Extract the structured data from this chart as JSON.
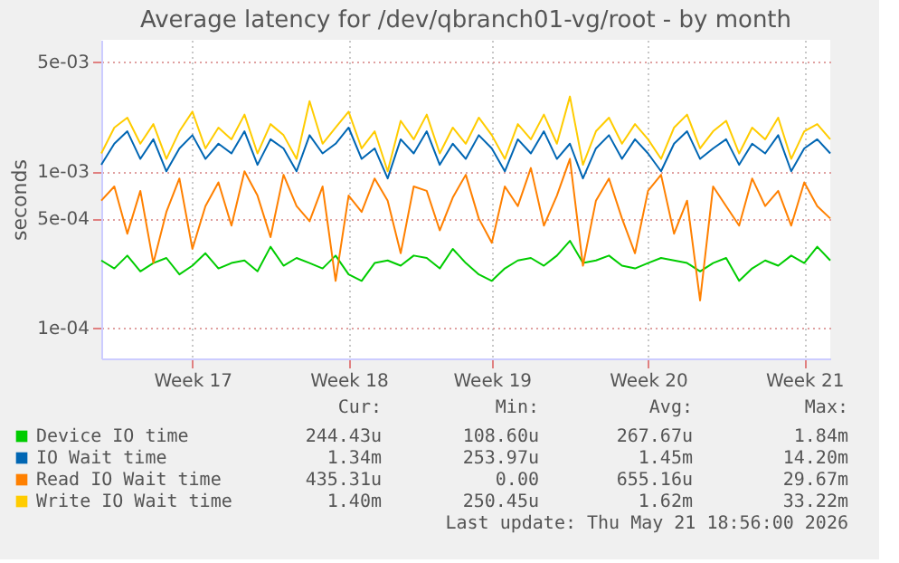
{
  "chart_data": {
    "type": "line",
    "title": "Average latency for /dev/qbranch01-vg/root - by month",
    "ylabel": "seconds",
    "log": "y",
    "grid": true,
    "legend": "bottom",
    "marker": "none",
    "line_style": "solid",
    "categories": [
      null,
      null,
      null,
      null,
      null,
      null,
      null,
      "Week 17",
      null,
      null,
      null,
      null,
      null,
      null,
      null,
      null,
      null,
      null,
      null,
      "Week 18",
      null,
      null,
      null,
      null,
      null,
      null,
      null,
      null,
      null,
      null,
      "Week 19",
      null,
      null,
      null,
      null,
      null,
      null,
      null,
      null,
      null,
      null,
      null,
      "Week 20",
      null,
      null,
      null,
      null,
      null,
      null,
      null,
      null,
      null,
      null,
      null,
      "Week 21",
      null,
      null
    ],
    "ylim": [
      6.4e-05,
      0.0069
    ],
    "yticks": [
      {
        "value": 0.0001,
        "label": "1e-04"
      },
      {
        "value": 0.0005,
        "label": "5e-04"
      },
      {
        "value": 0.001,
        "label": "1e-03"
      },
      {
        "value": 0.005,
        "label": "5e-03"
      }
    ],
    "series": [
      {
        "name": "Device IO time",
        "color": "#00cc00",
        "values": [
          0.00027,
          0.00024,
          0.00029,
          0.00023,
          0.00026,
          0.00028,
          0.00022,
          0.00025,
          0.0003,
          0.00024,
          0.00026,
          0.00027,
          0.00023,
          0.00033,
          0.00025,
          0.00028,
          0.00026,
          0.00024,
          0.00029,
          0.00022,
          0.0002,
          0.00026,
          0.00027,
          0.00025,
          0.00029,
          0.00028,
          0.00024,
          0.00032,
          0.00026,
          0.00022,
          0.0002,
          0.00024,
          0.00027,
          0.00028,
          0.00025,
          0.00029,
          0.00036,
          0.00026,
          0.00027,
          0.00029,
          0.00025,
          0.00024,
          0.00026,
          0.00028,
          0.00027,
          0.00026,
          0.00023,
          0.00026,
          0.00028,
          0.0002,
          0.00024,
          0.00027,
          0.00025,
          0.00029,
          0.00026,
          0.00033,
          0.00027
        ]
      },
      {
        "name": "IO Wait time",
        "color": "#0066b3",
        "values": [
          0.0011,
          0.0015,
          0.0018,
          0.0012,
          0.0016,
          0.001,
          0.0014,
          0.0017,
          0.0012,
          0.0015,
          0.0013,
          0.0018,
          0.0011,
          0.0016,
          0.0014,
          0.001,
          0.0017,
          0.0013,
          0.0015,
          0.0019,
          0.0012,
          0.0014,
          0.0009,
          0.0016,
          0.0013,
          0.0018,
          0.0011,
          0.0015,
          0.0012,
          0.0017,
          0.0014,
          0.001,
          0.0016,
          0.0013,
          0.0018,
          0.0012,
          0.0015,
          0.0009,
          0.0014,
          0.0017,
          0.0012,
          0.0016,
          0.0013,
          0.001,
          0.0015,
          0.0018,
          0.0012,
          0.0014,
          0.0016,
          0.0011,
          0.0015,
          0.0013,
          0.0017,
          0.001,
          0.0014,
          0.0016,
          0.0013
        ]
      },
      {
        "name": "Read IO Wait time",
        "color": "#ff8000",
        "values": [
          0.00065,
          0.0008,
          0.0004,
          0.00075,
          0.00026,
          0.00055,
          0.0009,
          0.00032,
          0.0006,
          0.00085,
          0.00045,
          0.001,
          0.0007,
          0.00038,
          0.00095,
          0.0006,
          0.00048,
          0.0008,
          0.0002,
          0.0007,
          0.00055,
          0.0009,
          0.00065,
          0.0003,
          0.0008,
          0.00075,
          0.00042,
          0.00068,
          0.00095,
          0.0005,
          0.00035,
          0.0008,
          0.0006,
          0.00105,
          0.00045,
          0.0007,
          0.0012,
          0.00025,
          0.00065,
          0.0009,
          0.0005,
          0.0003,
          0.00075,
          0.00095,
          0.0004,
          0.00065,
          0.00015,
          0.0008,
          0.0006,
          0.00045,
          0.0009,
          0.0006,
          0.00075,
          0.00045,
          0.00085,
          0.0006,
          0.0005
        ]
      },
      {
        "name": "Write IO Wait time",
        "color": "#ffcc00",
        "values": [
          0.0013,
          0.0019,
          0.0022,
          0.0015,
          0.002,
          0.0012,
          0.0018,
          0.0024,
          0.0014,
          0.0019,
          0.0016,
          0.0023,
          0.0013,
          0.002,
          0.0017,
          0.0012,
          0.0028,
          0.0015,
          0.0019,
          0.0024,
          0.0014,
          0.0018,
          0.001,
          0.0021,
          0.0016,
          0.0023,
          0.0013,
          0.0019,
          0.0015,
          0.0022,
          0.0017,
          0.0012,
          0.002,
          0.0016,
          0.0023,
          0.0015,
          0.003,
          0.0011,
          0.0018,
          0.0022,
          0.0015,
          0.002,
          0.0016,
          0.0012,
          0.0019,
          0.0023,
          0.0014,
          0.0018,
          0.0021,
          0.0013,
          0.0019,
          0.0016,
          0.0022,
          0.0012,
          0.0018,
          0.002,
          0.0016
        ]
      }
    ],
    "annotations": [
      "Cur:",
      "Min:",
      "Avg:",
      "Max:",
      "244.43u",
      "108.60u",
      "267.67u",
      "1.84m",
      "1.34m",
      "253.97u",
      "1.45m",
      "14.20m",
      "435.31u",
      "0.00",
      "655.16u",
      "29.67m",
      "1.40m",
      "250.45u",
      "1.62m",
      "33.22m",
      "Last update: Thu May 21 18:56:00 2026"
    ]
  }
}
